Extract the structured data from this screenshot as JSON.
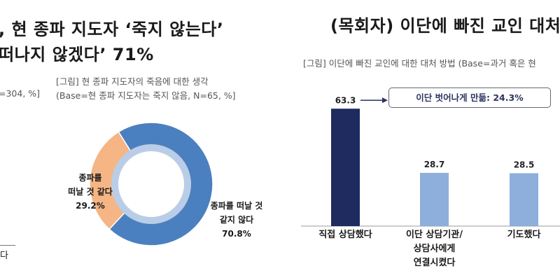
{
  "left_panel": {
    "title_line1": ", 현 종파 지도자 ‘죽지 않는다’",
    "title_line2": "떠나지 않겠다’ 71%",
    "caption_line1": "[그림] 현 종파 지도자의 죽음에 대한 생각",
    "caption_line2": "(Base=현 종파 지도자는 죽지 않음, N=65, %]",
    "left_partial_caption": "=304, %]",
    "left_partial_label": "다"
  },
  "right_panel": {
    "title": "(목회자) 이단에 빠진 교인 대처",
    "caption": "[그림] 이단에 빠진 교인에 대한 대처 방법 (Base=과거 혹은 현",
    "callout": "이단 벗어나게 만듦: 24.3%"
  },
  "chart_data": [
    {
      "type": "pie",
      "subtype": "donut",
      "slices": [
        {
          "label_line1": "종파를 떠날 것",
          "label_line2": "같지 않다",
          "value_label": "70.8%",
          "value": 70.8,
          "color": "#4a80bf"
        },
        {
          "label_line1": "종파를",
          "label_line2": "떠날 것 같다",
          "value_label": "29.2%",
          "value": 29.2,
          "color": "#f5b584"
        }
      ]
    },
    {
      "type": "bar",
      "categories": [
        [
          "직접 상담했다"
        ],
        [
          "이단 상담기관/",
          "상담사에게",
          "연결시켰다"
        ],
        [
          "기도했다"
        ]
      ],
      "values": [
        63.3,
        28.7,
        28.5
      ],
      "value_labels": [
        "63.3",
        "28.7",
        "28.5"
      ],
      "colors": [
        "#1f2a5e",
        "#8eaedb",
        "#8eaedb"
      ]
    }
  ]
}
